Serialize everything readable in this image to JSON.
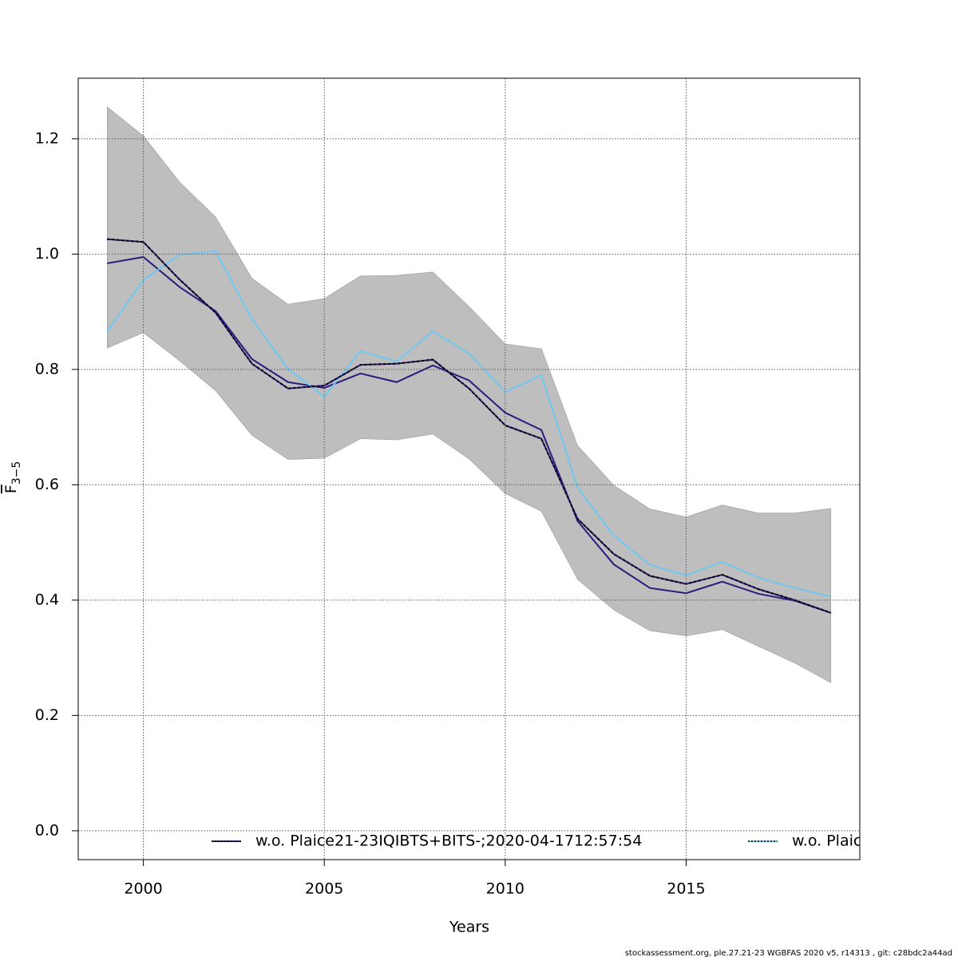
{
  "chart_data": {
    "type": "line",
    "xlabel": "Years",
    "ylabel": "F",
    "ylabel_sub": "3−5",
    "footer": "stockassessment.org, ple.27.21-23 WGBFAS 2020 v5, r14313 , git: c28bdc2a44ad",
    "x": [
      1999,
      2000,
      2001,
      2002,
      2003,
      2004,
      2005,
      2006,
      2007,
      2008,
      2009,
      2010,
      2011,
      2012,
      2013,
      2014,
      2015,
      2016,
      2017,
      2018,
      2019
    ],
    "band": {
      "color": "#bebebe",
      "upper": [
        1.255,
        1.205,
        1.125,
        1.064,
        0.958,
        0.913,
        0.923,
        0.962,
        0.963,
        0.969,
        0.909,
        0.844,
        0.836,
        0.668,
        0.599,
        0.558,
        0.544,
        0.565,
        0.551,
        0.551,
        0.559
      ],
      "lower": [
        0.837,
        0.864,
        0.815,
        0.763,
        0.686,
        0.644,
        0.646,
        0.68,
        0.678,
        0.688,
        0.645,
        0.585,
        0.554,
        0.436,
        0.383,
        0.347,
        0.338,
        0.349,
        0.32,
        0.291,
        0.257
      ]
    },
    "series": [
      {
        "color": "#000000",
        "dashed": true,
        "values": [
          1.026,
          1.021,
          0.956,
          0.898,
          0.81,
          0.767,
          0.772,
          0.808,
          0.81,
          0.817,
          0.767,
          0.703,
          0.68,
          0.541,
          0.48,
          0.442,
          0.428,
          0.444,
          0.419,
          0.4,
          0.378
        ]
      },
      {
        "name": "w.o. Plaice21-23IQIBTS+BITS-;2020-04-1712:57:54",
        "color": "#2e1a7a",
        "values": [
          0.984,
          0.995,
          0.943,
          0.901,
          0.818,
          0.778,
          0.768,
          0.793,
          0.778,
          0.807,
          0.781,
          0.725,
          0.695,
          0.537,
          0.462,
          0.421,
          0.412,
          0.432,
          0.411,
          0.399,
          0.378
        ]
      },
      {
        "name": "w.o. Plaic",
        "color": "#6fc8f0",
        "values": [
          0.866,
          0.955,
          0.999,
          1.005,
          0.887,
          0.801,
          0.753,
          0.832,
          0.814,
          0.866,
          0.828,
          0.761,
          0.79,
          0.595,
          0.512,
          0.461,
          0.443,
          0.466,
          0.439,
          0.421,
          0.406
        ]
      }
    ],
    "xlim": [
      1998.2,
      2019.8
    ],
    "ylim": [
      -0.05,
      1.305
    ],
    "xticks": [
      2000,
      2005,
      2010,
      2015
    ],
    "yticks": [
      {
        "value": 0,
        "label": "0.0"
      },
      0.2,
      0.4,
      0.6,
      0.8,
      {
        "value": 1,
        "label": "1.0"
      },
      1.2
    ],
    "grid": true
  }
}
